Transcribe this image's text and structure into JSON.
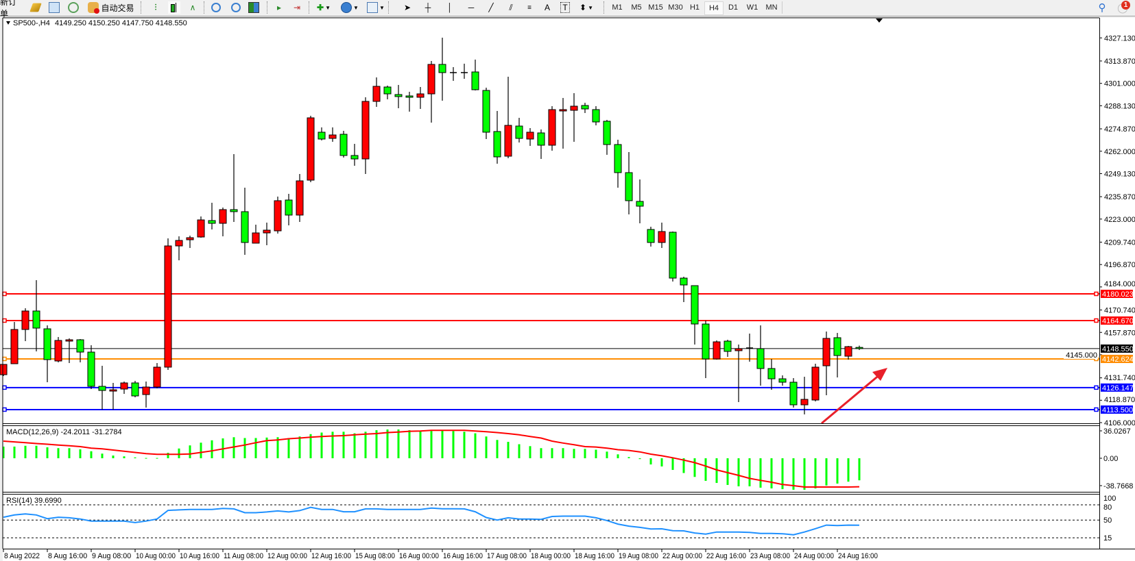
{
  "toolbar": {
    "new_order": "新订单",
    "auto_trading": "自动交易",
    "timeframes": [
      "M1",
      "M5",
      "M15",
      "M30",
      "H1",
      "H4",
      "D1",
      "W1",
      "MN"
    ],
    "active_timeframe": "H4",
    "notification_count": "1",
    "tools": {
      "text_tool": "A",
      "text_label_tool": "T"
    }
  },
  "chart_header": {
    "symbol": "SP500-,H4",
    "ohlc": "4149.250 4150.250 4147.750 4148.550"
  },
  "chart_data": [
    {
      "type": "candlestick",
      "symbol": "SP500-",
      "timeframe": "H4",
      "columns": [
        "open",
        "high",
        "low",
        "close"
      ],
      "bull_color": "#ff0000",
      "bear_color": "#00ff00",
      "candles": [
        [
          4133.56,
          4139.46,
          4132.77,
          4139.46
        ],
        [
          4139.86,
          4163.87,
          4139.86,
          4159.54
        ],
        [
          4159.54,
          4171.74,
          4152.85,
          4170.17
        ],
        [
          4170.17,
          4187.89,
          4146.94,
          4160.33
        ],
        [
          4159.93,
          4161.9,
          4129.23,
          4142.22
        ],
        [
          4141.43,
          4155.21,
          4140.64,
          4153.24
        ],
        [
          4152.85,
          4154.42,
          4140.25,
          4153.63
        ],
        [
          4153.63,
          4154.03,
          4140.64,
          4146.55
        ],
        [
          4146.55,
          4150.49,
          4125.29,
          4126.86
        ],
        [
          4126.86,
          4138.67,
          4113.48,
          4124.5
        ],
        [
          4124.11,
          4128.83,
          4113.48,
          4124.89
        ],
        [
          4125.29,
          4129.62,
          4122.53,
          4128.83
        ],
        [
          4128.83,
          4130.01,
          4120.56,
          4121.35
        ],
        [
          4122.14,
          4129.62,
          4114.66,
          4126.47
        ],
        [
          4126.47,
          4140.25,
          4125.68,
          4137.89
        ],
        [
          4137.89,
          4211.9,
          4136.31,
          4207.57
        ],
        [
          4207.57,
          4213.08,
          4199.3,
          4210.72
        ],
        [
          4211.11,
          4213.48,
          4206.39,
          4212.3
        ],
        [
          4212.69,
          4224.5,
          4212.3,
          4222.53
        ],
        [
          4222.14,
          4232.37,
          4217.02,
          4220.56
        ],
        [
          4220.56,
          4229.62,
          4213.08,
          4228.44
        ],
        [
          4228.44,
          4260.33,
          4221.35,
          4227.26
        ],
        [
          4227.26,
          4241.04,
          4202.45,
          4209.54
        ],
        [
          4209.15,
          4219.78,
          4209.15,
          4215.05
        ],
        [
          4215.05,
          4220.96,
          4207.97,
          4216.63
        ],
        [
          4216.23,
          4235.92,
          4214.66,
          4233.56
        ],
        [
          4233.95,
          4237.49,
          4219.38,
          4225.29
        ],
        [
          4225.29,
          4248.91,
          4221.35,
          4244.97
        ],
        [
          4245.37,
          4282.37,
          4244.19,
          4281.19
        ],
        [
          4272.93,
          4275.68,
          4268.2,
          4268.99
        ],
        [
          4269.38,
          4275.68,
          4267.41,
          4271.35
        ],
        [
          4271.74,
          4273.71,
          4258.36,
          4259.54
        ],
        [
          4259.54,
          4266.23,
          4253.63,
          4257.57
        ],
        [
          4257.57,
          4293.0,
          4248.91,
          4290.64
        ],
        [
          4290.64,
          4304.42,
          4287.49,
          4299.3
        ],
        [
          4298.91,
          4299.7,
          4291.82,
          4294.97
        ],
        [
          4294.58,
          4300.09,
          4286.71,
          4293.4
        ],
        [
          4293.79,
          4296.15,
          4284.74,
          4293.0
        ],
        [
          4293.0,
          4298.91,
          4286.31,
          4294.97
        ],
        [
          4294.97,
          4313.87,
          4278.44,
          4311.9
        ],
        [
          4311.9,
          4327.26,
          4291.04,
          4307.18
        ],
        [
          4307.18,
          4310.33,
          4302.45,
          4307.18
        ],
        [
          4307.18,
          4312.3,
          4303.63,
          4307.18
        ],
        [
          4307.57,
          4314.66,
          4296.94,
          4297.34
        ],
        [
          4296.94,
          4298.52,
          4268.99,
          4272.93
        ],
        [
          4273.32,
          4285.13,
          4254.82,
          4258.75
        ],
        [
          4259.15,
          4304.82,
          4257.97,
          4276.86
        ],
        [
          4276.47,
          4281.19,
          4267.02,
          4269.38
        ],
        [
          4268.99,
          4275.29,
          4265.05,
          4272.93
        ],
        [
          4272.53,
          4274.5,
          4257.57,
          4265.45
        ],
        [
          4265.45,
          4287.89,
          4262.3,
          4285.92
        ],
        [
          4285.13,
          4292.61,
          4263.48,
          4285.92
        ],
        [
          4285.52,
          4295.37,
          4267.41,
          4287.89
        ],
        [
          4288.28,
          4289.85,
          4283.95,
          4286.31
        ],
        [
          4285.92,
          4287.89,
          4276.86,
          4278.83
        ],
        [
          4279.23,
          4280.01,
          4259.93,
          4265.84
        ],
        [
          4265.84,
          4268.6,
          4241.04,
          4249.7
        ],
        [
          4249.7,
          4261.51,
          4225.68,
          4233.56
        ],
        [
          4233.16,
          4245.76,
          4220.56,
          4230.41
        ],
        [
          4217.02,
          4218.6,
          4207.18,
          4209.54
        ],
        [
          4209.54,
          4220.96,
          4206.39,
          4215.84
        ],
        [
          4215.45,
          4215.84,
          4187.1,
          4189.07
        ],
        [
          4189.07,
          4189.86,
          4175.29,
          4185.13
        ],
        [
          4184.74,
          4184.74,
          4150.88,
          4162.69
        ],
        [
          4162.69,
          4164.66,
          4131.59,
          4142.61
        ],
        [
          4142.61,
          4153.24,
          4142.22,
          4152.45
        ],
        [
          4152.85,
          4153.63,
          4143.8,
          4146.94
        ],
        [
          4147.34,
          4150.88,
          4117.81,
          4148.52
        ],
        [
          4148.91,
          4157.18,
          4141.04,
          4148.91
        ],
        [
          4148.52,
          4161.9,
          4127.26,
          4137.1
        ],
        [
          4137.1,
          4142.61,
          4124.89,
          4131.19
        ],
        [
          4131.19,
          4133.16,
          4127.26,
          4129.23
        ],
        [
          4129.23,
          4131.59,
          4114.66,
          4116.24
        ],
        [
          4116.24,
          4132.37,
          4110.72,
          4119.38
        ],
        [
          4118.99,
          4139.86,
          4118.2,
          4137.89
        ],
        [
          4138.67,
          4158.36,
          4121.75,
          4154.42
        ],
        [
          4154.82,
          4157.57,
          4131.98,
          4144.58
        ],
        [
          4144.19,
          4150.09,
          4142.22,
          4149.7
        ],
        [
          4149.25,
          4150.25,
          4147.75,
          4148.55
        ]
      ],
      "ylim": [
        4106.0,
        4327.13
      ],
      "y_ticks": [
        "4327.130",
        "4313.870",
        "4301.000",
        "4288.130",
        "4274.870",
        "4262.000",
        "4249.130",
        "4235.870",
        "4223.000",
        "4209.740",
        "4196.870",
        "4184.000",
        "4170.740",
        "4157.870",
        "4145.000",
        "4131.740",
        "4118.870",
        "4106.000"
      ],
      "x_ticks": [
        "8 Aug 2022",
        "8 Aug 16:00",
        "9 Aug 08:00",
        "10 Aug 00:00",
        "10 Aug 16:00",
        "11 Aug 08:00",
        "12 Aug 00:00",
        "12 Aug 16:00",
        "15 Aug 08:00",
        "16 Aug 00:00",
        "16 Aug 16:00",
        "17 Aug 08:00",
        "18 Aug 00:00",
        "18 Aug 16:00",
        "19 Aug 08:00",
        "22 Aug 00:00",
        "22 Aug 16:00",
        "23 Aug 08:00",
        "24 Aug 00:00",
        "24 Aug 16:00"
      ],
      "horizontal_lines": [
        {
          "price": 4180.023,
          "label": "4180.023",
          "color": "#ff0000"
        },
        {
          "price": 4164.67,
          "label": "4164.670",
          "color": "#ff0000"
        },
        {
          "price": 4142.624,
          "label": "4142.624",
          "color": "#ff8c00"
        },
        {
          "price": 4126.147,
          "label": "4126.147",
          "color": "#0000ff"
        },
        {
          "price": 4113.5,
          "label": "4113.500",
          "color": "#0000ff"
        }
      ],
      "current_price": {
        "price": 4148.55,
        "label": "4148.550",
        "color": "#000000"
      },
      "annotation_arrow": {
        "color": "#e8202a",
        "direction": "up-right"
      }
    },
    {
      "type": "bar+line",
      "indicator": "MACD",
      "label": "MACD(12,26,9) -24.2011 -31.2784",
      "ylim": [
        -38.7668,
        36.0267
      ],
      "y_ticks": [
        "36.0267",
        "0.00",
        "-38.7668"
      ],
      "main_color": "#00ff00",
      "signal_color": "#ff0000",
      "main": [
        12.8,
        12.8,
        13.7,
        13.7,
        12.0,
        11.1,
        11.1,
        9.8,
        7.7,
        5.1,
        3.0,
        2.1,
        0.9,
        0.3,
        0.3,
        6.0,
        10.7,
        14.1,
        17.1,
        19.7,
        21.8,
        23.1,
        22.2,
        22.2,
        22.7,
        23.1,
        22.2,
        23.9,
        26.5,
        28.2,
        29.1,
        29.1,
        27.4,
        29.1,
        30.8,
        31.6,
        31.6,
        30.8,
        29.9,
        29.9,
        30.8,
        29.9,
        29.1,
        27.4,
        23.9,
        20.1,
        18.0,
        15.4,
        13.3,
        11.1,
        11.1,
        11.1,
        10.3,
        10.3,
        9.4,
        7.3,
        4.3,
        1.3,
        -0.9,
        -6.8,
        -9.0,
        -12.8,
        -16.2,
        -20.5,
        -24.8,
        -27.1,
        -29.3,
        -30.8,
        -30.8,
        -32.3,
        -33.1,
        -33.9,
        -34.6,
        -34.6,
        -33.1,
        -29.9,
        -27.8,
        -25.7,
        -24.2
      ],
      "signal": [
        18.8,
        18.0,
        17.1,
        16.2,
        15.4,
        14.5,
        13.7,
        12.8,
        11.1,
        10.3,
        9.0,
        7.7,
        6.4,
        5.1,
        4.3,
        4.3,
        4.3,
        4.7,
        6.4,
        8.1,
        10.3,
        12.4,
        14.5,
        17.1,
        19.3,
        20.1,
        21.4,
        22.2,
        23.1,
        23.9,
        24.4,
        24.8,
        25.7,
        26.5,
        27.1,
        28.2,
        28.8,
        29.6,
        29.9,
        30.6,
        30.6,
        30.6,
        30.6,
        29.9,
        29.1,
        28.2,
        27.1,
        25.7,
        23.9,
        22.2,
        18.8,
        16.7,
        14.8,
        12.8,
        12.3,
        11.1,
        9.4,
        8.6,
        7.0,
        4.5,
        2.7,
        0.5,
        -2.0,
        -4.8,
        -8.6,
        -12.8,
        -15.8,
        -18.8,
        -22.1,
        -24.3,
        -26.3,
        -28.8,
        -30.1,
        -31.6,
        -31.6,
        -31.6,
        -31.6,
        -31.6,
        -31.3
      ]
    },
    {
      "type": "line",
      "indicator": "RSI",
      "label": "RSI(14) 39.6990",
      "ylim": [
        0,
        100
      ],
      "levels": [
        80,
        50,
        15
      ],
      "y_ticks": [
        "100",
        "80",
        "50",
        "15"
      ],
      "color": "#1e90ff",
      "values": [
        55.5,
        60,
        62,
        60,
        52.7,
        55.5,
        54.5,
        52,
        48,
        48,
        48,
        48,
        45,
        48,
        52,
        69,
        70,
        71,
        71,
        71,
        73,
        72,
        64.5,
        64.5,
        66,
        68,
        66,
        68.6,
        75,
        71,
        71,
        66.4,
        66.4,
        72,
        72,
        71,
        71,
        71,
        71,
        73.6,
        72.3,
        72.3,
        72,
        66.4,
        55,
        50,
        54.5,
        52,
        52,
        51.4,
        57,
        57.7,
        57.7,
        57.7,
        54.5,
        49,
        42,
        38,
        35.5,
        32.3,
        32.7,
        29,
        28.6,
        24.5,
        22.3,
        26.4,
        26.4,
        26.4,
        25.5,
        23.6,
        23.6,
        23,
        21,
        26.4,
        33,
        40,
        39,
        40,
        39.7
      ]
    }
  ]
}
